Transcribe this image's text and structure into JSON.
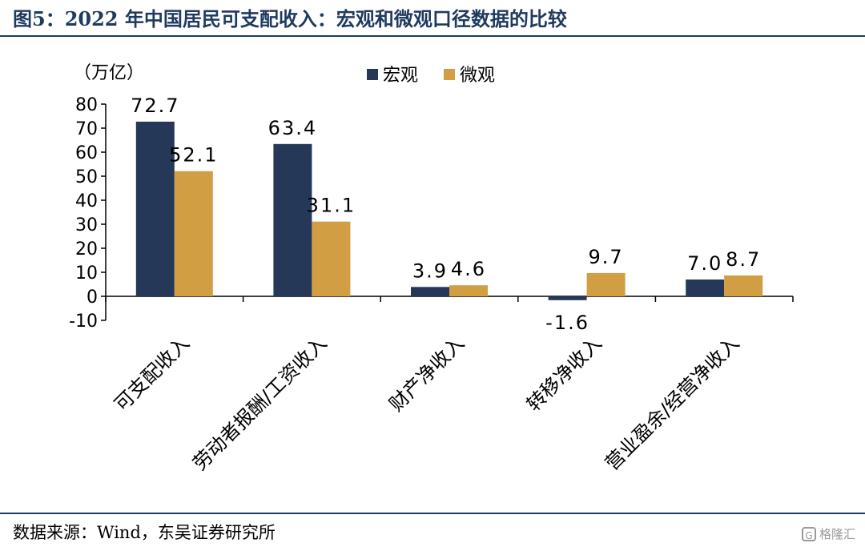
{
  "figure": {
    "title": "图5：2022 年中国居民可支配收入：宏观和微观口径数据的比较",
    "source": "数据来源：Wind，东吴证券研究所",
    "watermark": "格隆汇"
  },
  "chart_data": {
    "type": "bar",
    "unit_label": "（万亿）",
    "categories": [
      "可支配收入",
      "劳动者报酬/工资收入",
      "财产净收入",
      "转移净收入",
      "营业盈余/经营净收入"
    ],
    "series": [
      {
        "name": "宏观",
        "color": "#253858",
        "values": [
          72.7,
          63.4,
          3.9,
          -1.6,
          7.0
        ],
        "labels": [
          "72.7",
          "63.4",
          "3.9",
          "-1.6",
          "7.0"
        ]
      },
      {
        "name": "微观",
        "color": "#d29e44",
        "values": [
          52.1,
          31.1,
          4.6,
          9.7,
          8.7
        ],
        "labels": [
          "52.1",
          "31.1",
          "4.6",
          "9.7",
          "8.7"
        ]
      }
    ],
    "yticks": [
      80,
      70,
      60,
      50,
      40,
      30,
      20,
      10,
      0,
      -10
    ],
    "ylim": [
      -10,
      80
    ],
    "legend_position": "top-center",
    "grid": false
  }
}
